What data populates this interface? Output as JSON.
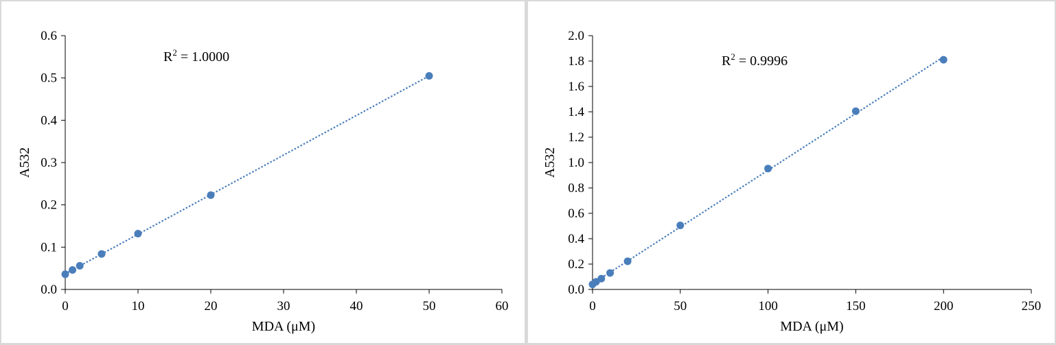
{
  "chart_data": [
    {
      "type": "scatter",
      "xlabel": "MDA (μM)",
      "ylabel": "A532",
      "xlim": [
        0,
        60
      ],
      "ylim": [
        0,
        0.6
      ],
      "xticks": [
        "0",
        "10",
        "20",
        "30",
        "40",
        "50",
        "60"
      ],
      "yticks": [
        "0.0",
        "0.1",
        "0.2",
        "0.3",
        "0.4",
        "0.5",
        "0.6"
      ],
      "annotation": {
        "prefix": "R",
        "sup": "2",
        "text": " = 1.0000"
      },
      "trendline": "linear-dotted",
      "color": "#4a7ebb",
      "grid": false,
      "series": [
        {
          "x": [
            0,
            1,
            2,
            5,
            10,
            20,
            50
          ],
          "y": [
            0.036,
            0.046,
            0.056,
            0.084,
            0.132,
            0.223,
            0.505
          ]
        }
      ]
    },
    {
      "type": "scatter",
      "xlabel": "MDA (μM)",
      "ylabel": "A532",
      "xlim": [
        0,
        250
      ],
      "ylim": [
        0,
        2.0
      ],
      "xticks": [
        "0",
        "50",
        "100",
        "150",
        "200",
        "250"
      ],
      "yticks": [
        "0.0",
        "0.2",
        "0.4",
        "0.6",
        "0.8",
        "1.0",
        "1.2",
        "1.4",
        "1.6",
        "1.8",
        "2.0"
      ],
      "annotation": {
        "prefix": "R",
        "sup": "2",
        "text": " = 0.9996"
      },
      "trendline": "linear-dotted",
      "color": "#4a7ebb",
      "grid": false,
      "series": [
        {
          "x": [
            0,
            2,
            5,
            10,
            20,
            50,
            100,
            150,
            200
          ],
          "y": [
            0.04,
            0.06,
            0.085,
            0.13,
            0.222,
            0.505,
            0.953,
            1.405,
            1.81
          ]
        }
      ]
    }
  ]
}
